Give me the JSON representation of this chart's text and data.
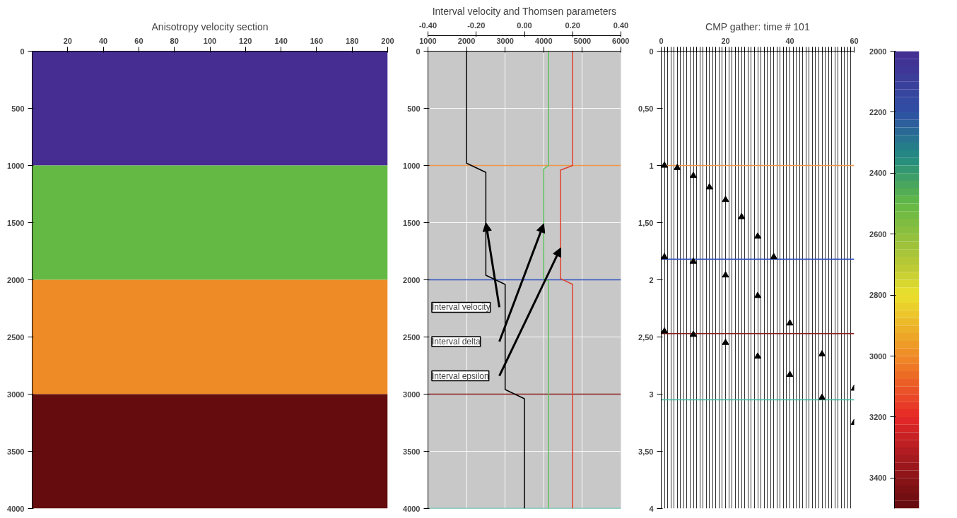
{
  "chart_data": [
    {
      "type": "heatmap",
      "title": "Anisotropy velocity section",
      "y": [
        500,
        1500,
        2500,
        3500
      ],
      "cells": [
        [
          2000
        ],
        [
          2500
        ],
        [
          3000
        ],
        [
          3500
        ]
      ],
      "xlim": [
        0,
        200
      ],
      "xticks": [
        20,
        40,
        60,
        80,
        100,
        120,
        140,
        160,
        180,
        200
      ],
      "ylim": [
        4000,
        0
      ],
      "yticks": [
        0,
        500,
        1000,
        1500,
        2000,
        2500,
        3000,
        3500,
        4000
      ],
      "clim": [
        2000,
        3500
      ],
      "cticks": [
        2000,
        2200,
        2400,
        2600,
        2800,
        3000,
        3200,
        3400
      ]
    },
    {
      "type": "line",
      "title": "Interval velocity and Thomsen parameters",
      "xlim": [
        1000,
        6000
      ],
      "xticks": [
        1000,
        2000,
        3000,
        4000,
        5000,
        6000
      ],
      "x2lim": [
        -0.4,
        0.4
      ],
      "x2ticks": [
        {
          "value": -0.4,
          "label": "-0.40"
        },
        {
          "value": -0.2,
          "label": "-0.20"
        },
        {
          "value": 0,
          "label": "0.00"
        },
        {
          "value": 0.2,
          "label": "0.20"
        },
        {
          "value": 0.4,
          "label": "0.40"
        }
      ],
      "ylim": [
        4000,
        0
      ],
      "yticks": [
        0,
        500,
        1000,
        1500,
        2000,
        2500,
        3000,
        3500,
        4000
      ],
      "grid": true,
      "series": [
        {
          "color": "#000000",
          "x": [
            2000,
            2000,
            2500,
            2500,
            3000,
            3000,
            3500,
            3500
          ],
          "values": [
            0,
            980,
            1060,
            1960,
            2040,
            2960,
            3040,
            4000
          ]
        },
        {
          "color": "#5cc45c",
          "axis": "x2",
          "x": [
            0.1,
            0.1,
            0.08,
            0.08,
            0.1,
            0.1
          ],
          "values": [
            0,
            1000,
            1030,
            1990,
            2010,
            4000
          ]
        },
        {
          "color": "#e0402c",
          "axis": "x2",
          "x": [
            0.2,
            0.2,
            0.15,
            0.15,
            0.2,
            0.2
          ],
          "values": [
            0,
            1000,
            1040,
            1990,
            2040,
            4000
          ]
        }
      ],
      "ref_lines": [
        {
          "axis": "y",
          "value": 1000,
          "color": "#f0964a"
        },
        {
          "axis": "y",
          "value": 2000,
          "color": "#3050c0"
        },
        {
          "axis": "y",
          "value": 3000,
          "color": "#8a2020"
        },
        {
          "axis": "y",
          "value": 4000,
          "color": "#40b8a0"
        }
      ],
      "annotations": [
        {
          "text": "Interval velocity",
          "x": 2500,
          "y": 1500
        },
        "Interval delta",
        {
          "text": "Interval epsilon",
          "x": 4440,
          "y": 1720
        }
      ]
    },
    {
      "type": "scatter",
      "title": "CMP gather: time # 101",
      "marker": "triangle",
      "xlim": [
        0,
        60
      ],
      "xticks": [
        0,
        {
          "value": 1,
          "label": null
        },
        {
          "value": 2,
          "label": null
        },
        {
          "value": 3,
          "label": null
        },
        {
          "value": 4,
          "label": null
        },
        {
          "value": 5,
          "label": null
        },
        {
          "value": 6,
          "label": null
        },
        {
          "value": 7,
          "label": null
        },
        {
          "value": 8,
          "label": null
        },
        {
          "value": 9,
          "label": null
        },
        {
          "value": 10,
          "label": null
        },
        {
          "value": 11,
          "label": null
        },
        {
          "value": 12,
          "label": null
        },
        {
          "value": 13,
          "label": null
        },
        {
          "value": 14,
          "label": null
        },
        {
          "value": 15,
          "label": null
        },
        {
          "value": 16,
          "label": null
        },
        {
          "value": 17,
          "label": null
        },
        {
          "value": 18,
          "label": null
        },
        {
          "value": 19,
          "label": null
        },
        20,
        {
          "value": 21,
          "label": null
        },
        {
          "value": 22,
          "label": null
        },
        {
          "value": 23,
          "label": null
        },
        {
          "value": 24,
          "label": null
        },
        {
          "value": 25,
          "label": null
        },
        {
          "value": 26,
          "label": null
        },
        {
          "value": 27,
          "label": null
        },
        {
          "value": 28,
          "label": null
        },
        {
          "value": 29,
          "label": null
        },
        {
          "value": 30,
          "label": null
        },
        {
          "value": 31,
          "label": null
        },
        {
          "value": 32,
          "label": null
        },
        {
          "value": 33,
          "label": null
        },
        {
          "value": 34,
          "label": null
        },
        {
          "value": 35,
          "label": null
        },
        {
          "value": 36,
          "label": null
        },
        {
          "value": 37,
          "label": null
        },
        {
          "value": 38,
          "label": null
        },
        {
          "value": 39,
          "label": null
        },
        40,
        {
          "value": 41,
          "label": null
        },
        {
          "value": 42,
          "label": null
        },
        {
          "value": 43,
          "label": null
        },
        {
          "value": 44,
          "label": null
        },
        {
          "value": 45,
          "label": null
        },
        {
          "value": 46,
          "label": null
        },
        {
          "value": 47,
          "label": null
        },
        {
          "value": 48,
          "label": null
        },
        {
          "value": 49,
          "label": null
        },
        {
          "value": 50,
          "label": null
        },
        {
          "value": 51,
          "label": null
        },
        {
          "value": 52,
          "label": null
        },
        {
          "value": 53,
          "label": null
        },
        {
          "value": 54,
          "label": null
        },
        {
          "value": 55,
          "label": null
        },
        {
          "value": 56,
          "label": null
        },
        {
          "value": 57,
          "label": null
        },
        {
          "value": 58,
          "label": null
        },
        {
          "value": 59,
          "label": null
        },
        60
      ],
      "grid": "x",
      "ylim": [
        4,
        0
      ],
      "yticks": [
        0,
        {
          "value": 0.5,
          "label": "0,50"
        },
        1,
        {
          "value": 1.5,
          "label": "1,50"
        },
        2,
        {
          "value": 2.5,
          "label": "2,50"
        },
        3,
        {
          "value": 3.5,
          "label": "3,50"
        },
        4
      ],
      "series": [
        {
          "color": "#000000",
          "x": [
            1,
            5,
            10,
            15,
            20,
            25,
            30,
            35
          ],
          "values": [
            1.0,
            1.02,
            1.09,
            1.19,
            1.3,
            1.45,
            1.62,
            1.8
          ]
        },
        {
          "color": "#000000",
          "x": [
            1,
            10,
            20,
            30,
            40,
            50,
            60
          ],
          "values": [
            1.8,
            1.84,
            1.96,
            2.14,
            2.38,
            2.65,
            2.95
          ]
        },
        {
          "color": "#000000",
          "x": [
            1,
            10,
            20,
            30,
            40,
            50,
            60
          ],
          "values": [
            2.45,
            2.48,
            2.55,
            2.67,
            2.83,
            3.03,
            3.25
          ]
        }
      ],
      "ref_lines": [
        {
          "axis": "y",
          "value": 1.0,
          "color": "#f0964a"
        },
        {
          "axis": "y",
          "value": 1.82,
          "color": "#3050c0"
        },
        {
          "axis": "y",
          "value": 2.47,
          "color": "#8a2020"
        },
        {
          "axis": "y",
          "value": 3.05,
          "color": "#40b8a0"
        }
      ]
    }
  ]
}
